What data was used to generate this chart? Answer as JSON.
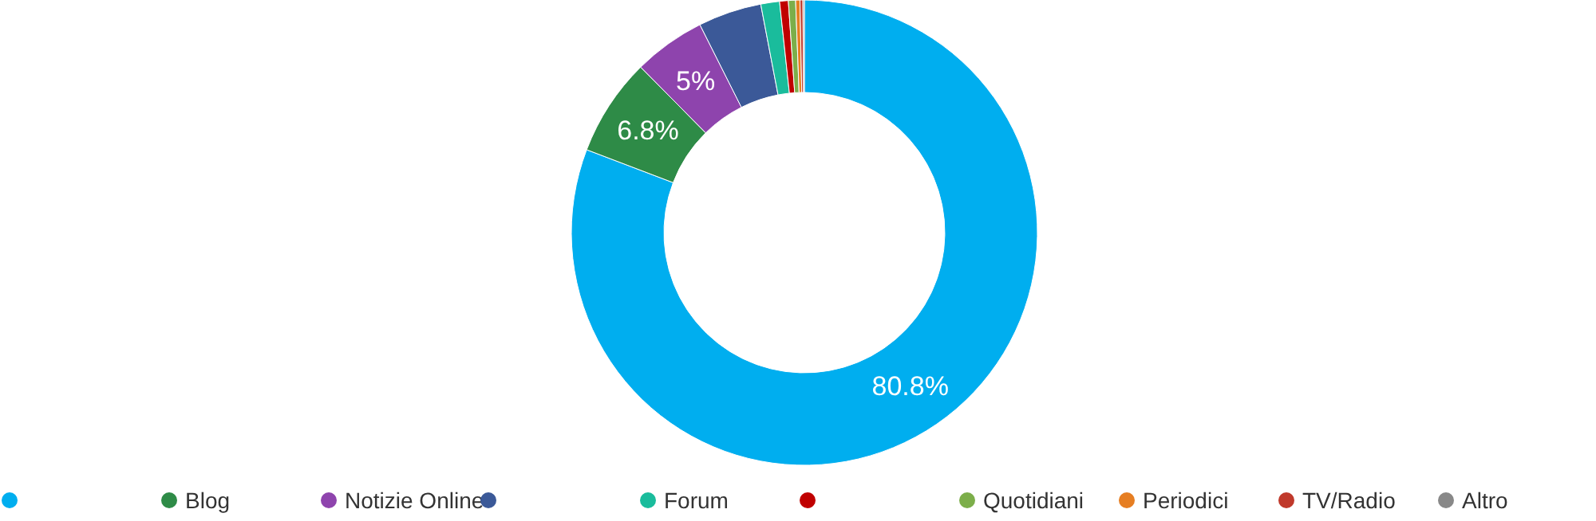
{
  "chart_data": {
    "type": "donut",
    "categories": [
      null,
      "Blog",
      "Notizie Online",
      null,
      "Forum",
      null,
      "Quotidiani",
      "Periodici",
      "TV/Radio",
      "Altro"
    ],
    "values": [
      80.8,
      6.8,
      5,
      4.4,
      1.3,
      0.6,
      0.5,
      0.3,
      0.2,
      0.1
    ],
    "colors": [
      "#00aeef",
      "#2e8b47",
      "#8e44ad",
      "#3b5998",
      "#1abc9c",
      "#c00000",
      "#7cae4a",
      "#e67e22",
      "#c0392b",
      "#888888"
    ],
    "value_labels": [
      "80.8%",
      "6.8%",
      "5%",
      null,
      null,
      null,
      null,
      null,
      null,
      null
    ],
    "legend": "bottom"
  }
}
